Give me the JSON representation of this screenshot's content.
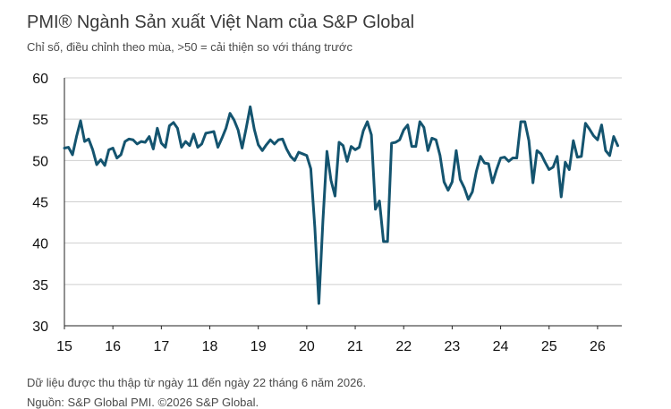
{
  "title": "PMI® Ngành Sản xuất Việt Nam của S&P Global",
  "subtitle": "Chỉ số, điều chỉnh theo mùa, >50 = cải thiện so với tháng trước",
  "footnote": "Dữ liệu được thu thập từ ngày 11 đến ngày 22 tháng 6 năm 2026.",
  "source": "Nguồn: S&P Global PMI. ©2026 S&P Global.",
  "colors": {
    "line": "#14546f",
    "grid": "#cfcfcf",
    "axis": "#222222"
  },
  "chart_data": {
    "type": "line",
    "title": "PMI® Ngành Sản xuất Việt Nam của S&P Global",
    "subtitle": "Chỉ số, điều chỉnh theo mùa, >50 = cải thiện so với tháng trước",
    "xlabel": "",
    "ylabel": "",
    "ylim": [
      30,
      60
    ],
    "yticks": [
      30,
      35,
      40,
      45,
      50,
      55,
      60
    ],
    "xlim": [
      2015.0,
      2026.5
    ],
    "xticks": [
      {
        "value": 2015,
        "label": "15"
      },
      {
        "value": 2016,
        "label": "16"
      },
      {
        "value": 2017,
        "label": "17"
      },
      {
        "value": 2018,
        "label": "18"
      },
      {
        "value": 2019,
        "label": "19"
      },
      {
        "value": 2020,
        "label": "20"
      },
      {
        "value": 2021,
        "label": "21"
      },
      {
        "value": 2022,
        "label": "22"
      },
      {
        "value": 2023,
        "label": "23"
      },
      {
        "value": 2024,
        "label": "24"
      },
      {
        "value": 2025,
        "label": "25"
      },
      {
        "value": 2026,
        "label": "26"
      }
    ],
    "grid": true,
    "legend": "none",
    "series": [
      {
        "start": "2015-01",
        "frequency": "monthly",
        "values": [
          51.5,
          51.6,
          50.7,
          52.9,
          54.8,
          52.3,
          52.6,
          51.3,
          49.5,
          50.1,
          49.4,
          51.3,
          51.5,
          50.3,
          50.7,
          52.3,
          52.6,
          52.5,
          52.0,
          52.3,
          52.2,
          52.9,
          51.4,
          53.9,
          52.1,
          51.6,
          54.2,
          54.6,
          53.9,
          51.6,
          52.3,
          51.8,
          53.2,
          51.6,
          52.0,
          53.3,
          53.4,
          53.5,
          51.6,
          52.7,
          53.9,
          55.7,
          54.9,
          53.7,
          51.5,
          53.9,
          56.5,
          53.8,
          51.9,
          51.2,
          51.9,
          52.5,
          52.0,
          52.5,
          52.6,
          51.4,
          50.5,
          50.0,
          51.0,
          50.8,
          50.6,
          49.0,
          41.9,
          32.7,
          42.7,
          51.1,
          47.6,
          45.7,
          52.2,
          51.8,
          49.9,
          51.7,
          51.3,
          51.6,
          53.6,
          54.7,
          53.1,
          44.1,
          45.1,
          40.2,
          40.2,
          52.1,
          52.2,
          52.5,
          53.7,
          54.3,
          51.7,
          51.7,
          54.7,
          54.0,
          51.2,
          52.7,
          52.5,
          50.6,
          47.4,
          46.4,
          47.4,
          51.2,
          47.7,
          46.7,
          45.3,
          46.2,
          48.7,
          50.5,
          49.7,
          49.6,
          47.3,
          48.9,
          50.3,
          50.4,
          49.9,
          50.3,
          50.3,
          54.7,
          54.7,
          52.4,
          47.3,
          51.2,
          50.8,
          49.8,
          48.9,
          49.2,
          50.5,
          45.6,
          49.8,
          48.9,
          52.4,
          50.4,
          50.5,
          54.5,
          53.8,
          53.0,
          52.5,
          54.3,
          51.2,
          50.6,
          52.9,
          51.8
        ]
      }
    ]
  }
}
